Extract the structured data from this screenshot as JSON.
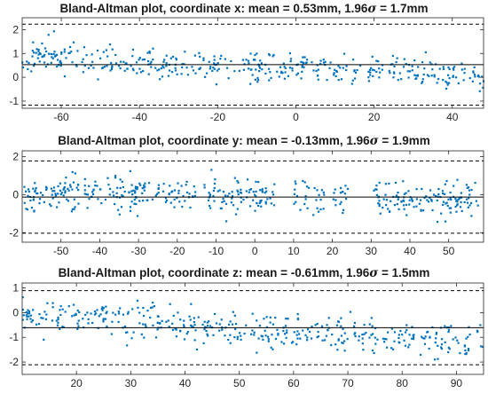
{
  "chart_data": [
    {
      "type": "scatter",
      "title_prefix": "Bland-Altman plot, coordinate x: mean = 0.53mm, 1.96",
      "title_symbol": "σ",
      "title_suffix": " = 1.7mm",
      "xlim": [
        -70,
        48
      ],
      "ylim": [
        -1.3,
        2.5
      ],
      "xticks": [
        -60,
        -40,
        -20,
        0,
        20,
        40
      ],
      "yticks": [
        -1,
        0,
        1,
        2
      ],
      "mean": 0.53,
      "upper_loa": 2.23,
      "lower_loa": -1.17,
      "marker_color": "#0072BD",
      "line_color": "#000000",
      "n_points": 420,
      "trend": {
        "y_at_xmin": 0.85,
        "y_at_xmax": 0.05,
        "spread": 0.32
      },
      "dense_ranges": [
        [
          -70,
          48
        ]
      ],
      "seed": 11
    },
    {
      "type": "scatter",
      "title_prefix": "Bland-Altman plot, coordinate y: mean = -0.13mm, 1.96",
      "title_symbol": "σ",
      "title_suffix": " = 1.9mm",
      "xlim": [
        -60,
        59
      ],
      "ylim": [
        -2.5,
        2.3
      ],
      "xticks": [
        -50,
        -40,
        -30,
        -20,
        -10,
        0,
        10,
        20,
        30,
        40,
        50
      ],
      "yticks": [
        -2,
        0,
        2
      ],
      "mean": -0.13,
      "upper_loa": 1.77,
      "lower_loa": -2.03,
      "marker_color": "#0072BD",
      "line_color": "#000000",
      "n_points": 470,
      "trend": {
        "y_at_xmin": 0.15,
        "y_at_xmax": -0.3,
        "spread": 0.45
      },
      "dense_ranges": [
        [
          -60,
          -15
        ],
        [
          -13,
          6
        ],
        [
          10,
          14
        ],
        [
          15,
          18
        ],
        [
          20,
          24
        ],
        [
          30,
          59
        ]
      ],
      "seed": 29
    },
    {
      "type": "scatter",
      "title_prefix": "Bland-Altman plot, coordinate z: mean = -0.61mm, 1.96",
      "title_symbol": "σ",
      "title_suffix": " = 1.5mm",
      "xlim": [
        10,
        95
      ],
      "ylim": [
        -2.5,
        1.2
      ],
      "xticks": [
        20,
        30,
        40,
        50,
        60,
        70,
        80,
        90
      ],
      "yticks": [
        -2,
        -1,
        0,
        1
      ],
      "mean": -0.61,
      "upper_loa": 0.89,
      "lower_loa": -2.11,
      "marker_color": "#0072BD",
      "line_color": "#000000",
      "n_points": 420,
      "trend": {
        "y_at_xmin": -0.1,
        "y_at_xmax": -1.25,
        "spread": 0.35
      },
      "dense_ranges": [
        [
          10,
          95
        ]
      ],
      "seed": 47
    }
  ]
}
